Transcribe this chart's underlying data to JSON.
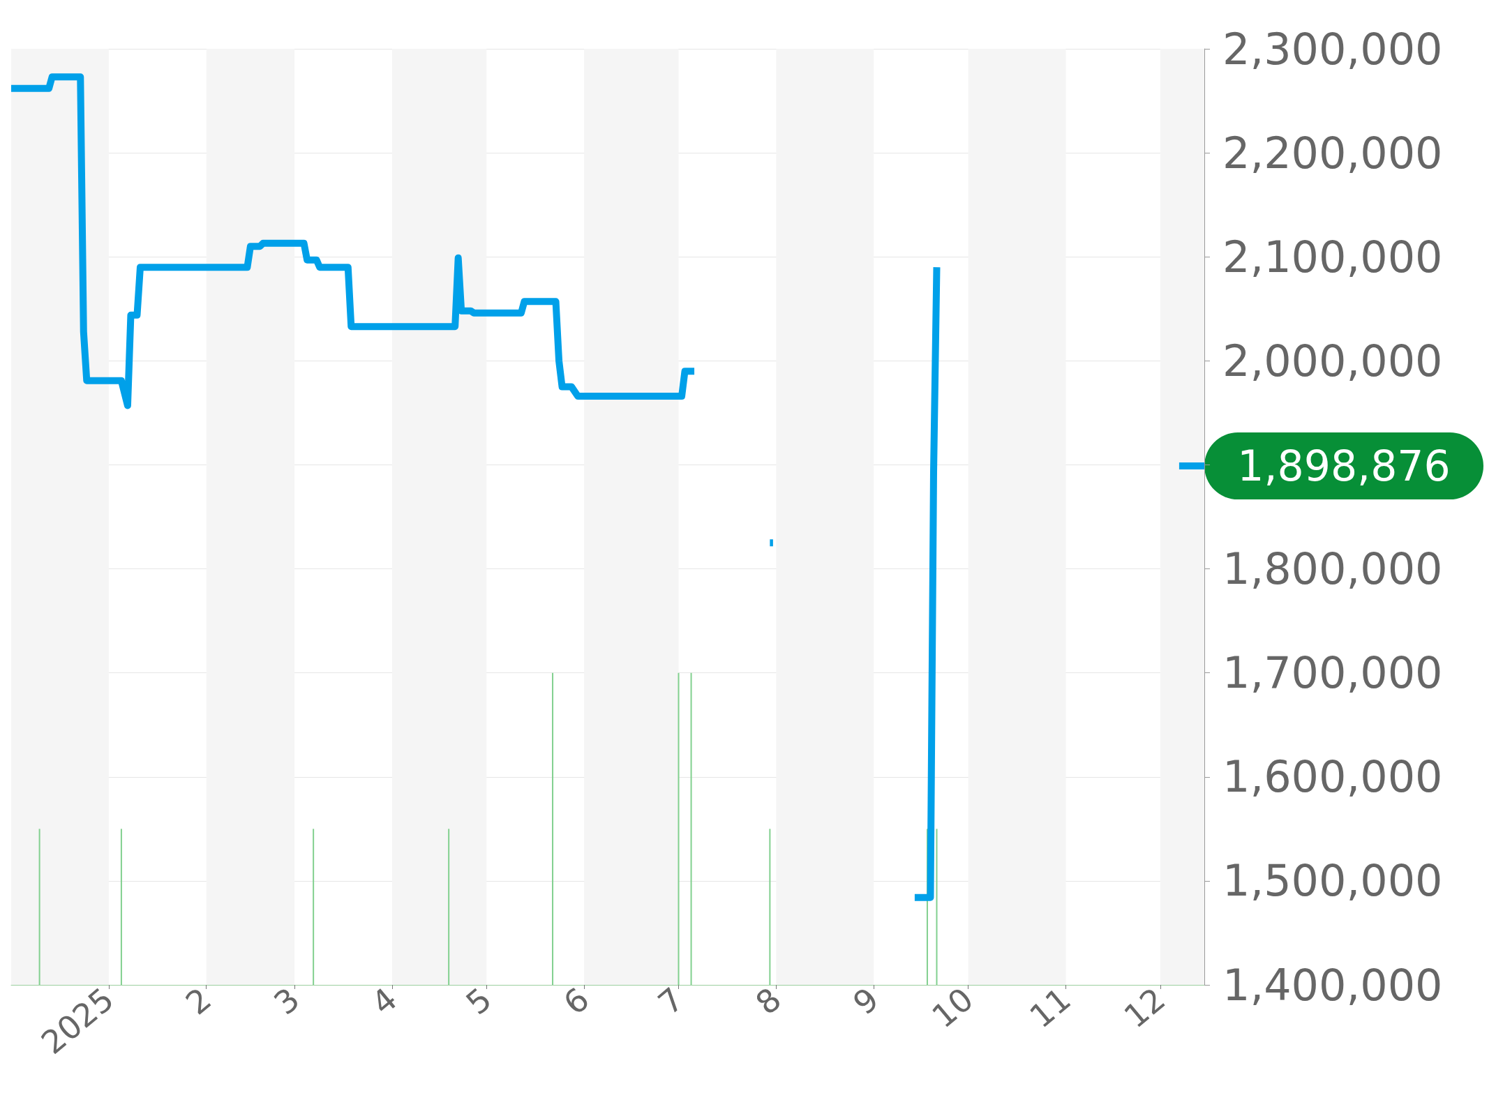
{
  "chart_data": {
    "type": "line",
    "xlim": [
      "2024-12-01",
      "2025-12-15"
    ],
    "xticks": [
      {
        "value": "2025-01-01",
        "label": "2025"
      },
      {
        "value": "2025-02-01",
        "label": "2"
      },
      {
        "value": "2025-03-01",
        "label": "3"
      },
      {
        "value": "2025-04-01",
        "label": "4"
      },
      {
        "value": "2025-05-01",
        "label": "5"
      },
      {
        "value": "2025-06-01",
        "label": "6"
      },
      {
        "value": "2025-07-01",
        "label": "7"
      },
      {
        "value": "2025-08-01",
        "label": "8"
      },
      {
        "value": "2025-09-01",
        "label": "9"
      },
      {
        "value": "2025-10-01",
        "label": "10"
      },
      {
        "value": "2025-11-01",
        "label": "11"
      },
      {
        "value": "2025-12-01",
        "label": "12"
      }
    ],
    "ylim": [
      1400000,
      2300000
    ],
    "yticks": [
      {
        "value": 1400000,
        "label": "1,400,000"
      },
      {
        "value": 1500000,
        "label": "1,500,000"
      },
      {
        "value": 1600000,
        "label": "1,600,000"
      },
      {
        "value": 1700000,
        "label": "1,700,000"
      },
      {
        "value": 1800000,
        "label": "1,800,000"
      },
      {
        "value": 1900000,
        "label": null
      },
      {
        "value": 2000000,
        "label": "2,000,000"
      },
      {
        "value": 2100000,
        "label": "2,100,000"
      },
      {
        "value": 2200000,
        "label": "2,200,000"
      },
      {
        "value": 2300000,
        "label": "2,300,000"
      }
    ],
    "grid": "y",
    "series": [
      {
        "type": "bar",
        "color": "#82d08f",
        "x": [
          "2024-12-10",
          "2025-01-05",
          "2025-03-07",
          "2025-04-19",
          "2025-05-22",
          "2025-07-01",
          "2025-07-05",
          "2025-07-30",
          "2025-09-18",
          "2025-09-21"
        ],
        "values": [
          1550000,
          1550000,
          1550000,
          1550000,
          1700000,
          1700000,
          1700000,
          1550000,
          1550000,
          1550000
        ]
      },
      {
        "color": "#00a0e9",
        "x": [
          "2024-12-01",
          "2024-12-13",
          "2024-12-14",
          "2024-12-23",
          "2024-12-24",
          "2024-12-25",
          "2025-01-05",
          "2025-01-07",
          "2025-01-08",
          "2025-01-10",
          "2025-01-11",
          "2025-02-14",
          "2025-02-15",
          "2025-02-18",
          "2025-02-19",
          "2025-03-04",
          "2025-03-05",
          "2025-03-08",
          "2025-03-09",
          "2025-03-18",
          "2025-03-19",
          "2025-04-21",
          "2025-04-22",
          "2025-04-23",
          "2025-04-26",
          "2025-04-27",
          "2025-05-12",
          "2025-05-13",
          "2025-05-23",
          "2025-05-24",
          "2025-05-25",
          "2025-05-28",
          "2025-05-30",
          "2025-07-02",
          "2025-07-03",
          "2025-07-06",
          "2025-07-15",
          "2025-07-30",
          "2025-07-31",
          "2025-08-15",
          "2025-09-14",
          "2025-09-19",
          "2025-09-20",
          "2025-09-21",
          "2025-10-15",
          "2025-12-07",
          "2025-12-15"
        ],
        "values": [
          2262000,
          2262000,
          2273000,
          2273000,
          2028000,
          1981000,
          1981000,
          1957000,
          2044000,
          2044000,
          2090000,
          2090000,
          2110000,
          2110000,
          2113000,
          2113000,
          2097000,
          2097000,
          2090000,
          2090000,
          2033000,
          2033000,
          2099000,
          2048000,
          2048000,
          2046000,
          2046000,
          2057000,
          2057000,
          2000000,
          1975000,
          1975000,
          1966000,
          1966000,
          1990000,
          1990000,
          null,
          1825000,
          1825000,
          null,
          1484000,
          1484000,
          1892000,
          2090000,
          null,
          1898876,
          1898876
        ]
      }
    ],
    "bands": [
      {
        "axis": "x",
        "from": "2024-12-01",
        "to": "2025-01-01",
        "color": "#f5f5f5"
      },
      {
        "axis": "x",
        "from": "2025-02-01",
        "to": "2025-03-01",
        "color": "#f5f5f5"
      },
      {
        "axis": "x",
        "from": "2025-04-01",
        "to": "2025-05-01",
        "color": "#f5f5f5"
      },
      {
        "axis": "x",
        "from": "2025-06-01",
        "to": "2025-07-01",
        "color": "#f5f5f5"
      },
      {
        "axis": "x",
        "from": "2025-08-01",
        "to": "2025-09-01",
        "color": "#f5f5f5"
      },
      {
        "axis": "x",
        "from": "2025-10-01",
        "to": "2025-11-01",
        "color": "#f5f5f5"
      },
      {
        "axis": "x",
        "from": "2025-12-01",
        "to": "2025-12-15",
        "color": "#f5f5f5"
      }
    ],
    "annotations": [
      {
        "text": "1,898,876",
        "x": "2025-12-15",
        "y": 1898876
      }
    ]
  }
}
